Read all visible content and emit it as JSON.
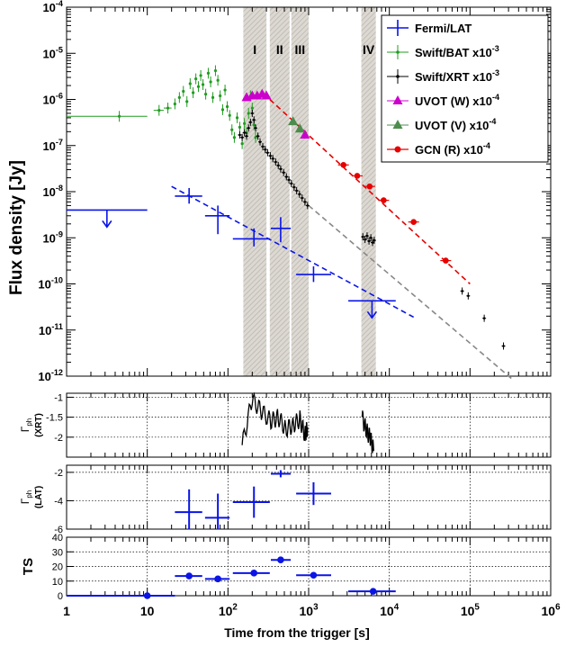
{
  "chart_data": [
    {
      "type": "scatter",
      "panel": "flux",
      "ylabel": "Flux density [Jy]",
      "xlim": [
        1,
        1000000
      ],
      "ylim": [
        1e-12,
        0.0001
      ],
      "log_x": true,
      "log_y": true,
      "grid": false,
      "legend_placement": "top-right",
      "yticks": [
        {
          "base": "10",
          "exp": "-4"
        },
        {
          "base": "10",
          "exp": "-5"
        },
        {
          "base": "10",
          "exp": "-6"
        },
        {
          "base": "10",
          "exp": "-7"
        },
        {
          "base": "10",
          "exp": "-8"
        },
        {
          "base": "10",
          "exp": "-9"
        },
        {
          "base": "10",
          "exp": "-10"
        },
        {
          "base": "10",
          "exp": "-11"
        },
        {
          "base": "10",
          "exp": "-12"
        }
      ],
      "bands": [
        {
          "label": "I",
          "x_from": 155,
          "x_to": 300
        },
        {
          "label": "II",
          "x_from": 330,
          "x_to": 580
        },
        {
          "label": "III",
          "x_from": 610,
          "x_to": 1000
        },
        {
          "label": "IV",
          "x_from": 4500,
          "x_to": 6800
        }
      ],
      "legend": [
        {
          "name": "Fermi/LAT",
          "color": "#0a14e6",
          "marker": "cross"
        },
        {
          "name": "Swift/BAT x10",
          "exp": "-3",
          "color": "#1f9c1f",
          "marker": "dot"
        },
        {
          "name": "Swift/XRT x10",
          "exp": "-3",
          "color": "#000000",
          "marker": "dot"
        },
        {
          "name": "UVOT (W) x10",
          "exp": "-4",
          "color": "#cc00cc",
          "marker": "triangle"
        },
        {
          "name": "UVOT (V) x10",
          "exp": "-4",
          "color": "#4d8c4d",
          "marker": "triangle"
        },
        {
          "name": "GCN (R) x10",
          "exp": "-4",
          "color": "#e60000",
          "marker": "circle"
        }
      ],
      "series": [
        {
          "name": "Fermi/LAT",
          "color": "#0a14e6",
          "points": [
            {
              "x": 3.16,
              "xlo": 1,
              "xhi": 10,
              "y": 4e-09,
              "upper_limit": true
            },
            {
              "x": 33,
              "xlo": 22,
              "xhi": 48,
              "y": 8e-09,
              "ylo": 5.5e-09,
              "yhi": 1.2e-08
            },
            {
              "x": 75,
              "xlo": 52,
              "xhi": 105,
              "y": 3e-09,
              "ylo": 1.2e-09,
              "yhi": 5e-09
            },
            {
              "x": 210,
              "xlo": 115,
              "xhi": 330,
              "y": 9.5e-10,
              "ylo": 6.5e-10,
              "yhi": 1.6e-09
            },
            {
              "x": 450,
              "xlo": 340,
              "xhi": 600,
              "y": 1.6e-09,
              "ylo": 8e-10,
              "yhi": 2.8e-09
            },
            {
              "x": 1150,
              "xlo": 700,
              "xhi": 1900,
              "y": 1.6e-10,
              "ylo": 1.1e-10,
              "yhi": 2.4e-10
            },
            {
              "x": 6300,
              "xlo": 3100,
              "xhi": 12000,
              "y": 4.3e-11,
              "upper_limit": true
            }
          ],
          "fit": {
            "x_from": 20,
            "x_to": 20000,
            "y_from": 1.3e-08,
            "y_to": 1.9e-11
          }
        },
        {
          "name": "Swift/BAT x10^-3",
          "color": "#1f9c1f",
          "points": [
            {
              "x": 4.5,
              "xlo": 1,
              "xhi": 10,
              "y": 4.3e-07
            },
            {
              "x": 14,
              "xlo": 12,
              "xhi": 16,
              "y": 5.8e-07
            },
            {
              "x": 18,
              "xlo": 16,
              "xhi": 20,
              "y": 6.5e-07
            },
            {
              "x": 22,
              "y": 8e-07
            },
            {
              "x": 25,
              "y": 1.1e-06
            },
            {
              "x": 28,
              "y": 1.5e-06
            },
            {
              "x": 31,
              "y": 9e-07
            },
            {
              "x": 34,
              "y": 2.2e-06
            },
            {
              "x": 37,
              "y": 1.4e-06
            },
            {
              "x": 40,
              "y": 2.8e-06
            },
            {
              "x": 43,
              "y": 1.9e-06
            },
            {
              "x": 46,
              "y": 3.3e-06
            },
            {
              "x": 49,
              "y": 2.1e-06
            },
            {
              "x": 53,
              "y": 1.3e-06
            },
            {
              "x": 57,
              "y": 3.7e-06
            },
            {
              "x": 61,
              "y": 2.4e-06
            },
            {
              "x": 65,
              "y": 1.1e-06
            },
            {
              "x": 70,
              "y": 4.2e-06
            },
            {
              "x": 75,
              "y": 2.6e-06
            },
            {
              "x": 80,
              "y": 1.2e-06
            },
            {
              "x": 86,
              "y": 6e-07
            },
            {
              "x": 92,
              "y": 1.6e-06
            },
            {
              "x": 98,
              "y": 7e-07
            },
            {
              "x": 105,
              "y": 4.5e-07
            },
            {
              "x": 112,
              "y": 2.2e-07
            },
            {
              "x": 120,
              "y": 1.5e-07
            },
            {
              "x": 130,
              "y": 4e-07
            },
            {
              "x": 140,
              "y": 2.5e-07
            },
            {
              "x": 150,
              "y": 1.1e-07
            },
            {
              "x": 160,
              "y": 3e-07
            },
            {
              "x": 170,
              "y": 1.9e-07
            },
            {
              "x": 180,
              "y": 5e-07
            },
            {
              "x": 190,
              "y": 1.2e-06
            },
            {
              "x": 200,
              "y": 6.5e-07
            },
            {
              "x": 210,
              "y": 2.8e-07
            },
            {
              "x": 220,
              "y": 1.5e-07
            }
          ]
        },
        {
          "name": "Swift/XRT x10^-3",
          "color": "#000000",
          "points": [
            {
              "x": 140,
              "y": 1.7e-07
            },
            {
              "x": 150,
              "y": 1.5e-07
            },
            {
              "x": 160,
              "y": 1.9e-07
            },
            {
              "x": 170,
              "y": 1.6e-07
            },
            {
              "x": 180,
              "y": 2.4e-07
            },
            {
              "x": 190,
              "y": 3.2e-07
            },
            {
              "x": 200,
              "y": 5e-07
            },
            {
              "x": 210,
              "y": 3.6e-07
            },
            {
              "x": 220,
              "y": 2.4e-07
            },
            {
              "x": 235,
              "y": 1.6e-07
            },
            {
              "x": 250,
              "y": 1.2e-07
            },
            {
              "x": 270,
              "y": 9.5e-08
            },
            {
              "x": 290,
              "y": 8.2e-08
            },
            {
              "x": 310,
              "y": 7e-08
            },
            {
              "x": 335,
              "y": 6e-08
            },
            {
              "x": 360,
              "y": 5.2e-08
            },
            {
              "x": 390,
              "y": 4.4e-08
            },
            {
              "x": 420,
              "y": 3.7e-08
            },
            {
              "x": 450,
              "y": 3.1e-08
            },
            {
              "x": 490,
              "y": 2.6e-08
            },
            {
              "x": 530,
              "y": 2.1e-08
            },
            {
              "x": 570,
              "y": 1.8e-08
            },
            {
              "x": 610,
              "y": 1.5e-08
            },
            {
              "x": 660,
              "y": 1.25e-08
            },
            {
              "x": 710,
              "y": 1.05e-08
            },
            {
              "x": 770,
              "y": 8.8e-09
            },
            {
              "x": 830,
              "y": 7.3e-09
            },
            {
              "x": 900,
              "y": 6e-09
            },
            {
              "x": 970,
              "y": 5e-09
            },
            {
              "x": 4700,
              "y": 1.05e-09
            },
            {
              "x": 5000,
              "y": 9.2e-10
            },
            {
              "x": 5300,
              "y": 1.1e-09
            },
            {
              "x": 5600,
              "y": 8.5e-10
            },
            {
              "x": 5900,
              "y": 1e-09
            },
            {
              "x": 6200,
              "y": 7.9e-10
            },
            {
              "x": 6500,
              "y": 8.8e-10
            },
            {
              "x": 80000,
              "y": 7e-11
            },
            {
              "x": 95000,
              "y": 5.5e-11
            },
            {
              "x": 150000,
              "y": 1.8e-11
            },
            {
              "x": 260000,
              "y": 4.5e-12
            }
          ],
          "fit": {
            "x_from": 1000,
            "x_to": 350000,
            "y_from": 5e-09,
            "y_to": 8e-13
          }
        },
        {
          "name": "UVOT (W) x10^-4",
          "color": "#cc00cc",
          "points": [
            {
              "x": 170,
              "y": 1.1e-06
            },
            {
              "x": 200,
              "y": 1.2e-06
            },
            {
              "x": 230,
              "y": 1.2e-06
            },
            {
              "x": 265,
              "y": 1.3e-06
            },
            {
              "x": 300,
              "y": 1.2e-06
            },
            {
              "x": 900,
              "y": 1.7e-07
            }
          ]
        },
        {
          "name": "UVOT (V) x10^-4",
          "color": "#4d8c4d",
          "points": [
            {
              "x": 640,
              "y": 3.3e-07
            },
            {
              "x": 780,
              "y": 2.3e-07
            }
          ]
        },
        {
          "name": "GCN (R) x10^-4",
          "color": "#e60000",
          "points": [
            {
              "x": 2700,
              "y": 3.8e-08
            },
            {
              "x": 4000,
              "y": 2.2e-08
            },
            {
              "x": 5700,
              "y": 1.3e-08
            },
            {
              "x": 8500,
              "y": 6.5e-09
            },
            {
              "x": 20000,
              "y": 2.2e-09
            },
            {
              "x": 50000,
              "y": 3.2e-10
            }
          ],
          "fit": {
            "x_from": 330,
            "x_to": 100000,
            "y_from": 1e-06,
            "y_to": 1e-10
          }
        }
      ]
    },
    {
      "type": "line",
      "panel": "xrt-index",
      "ylabel": "Γ",
      "ylabel_sub": "ph",
      "ylabel2": "(XRT)",
      "ylim": [
        -2.5,
        -0.9
      ],
      "yticks": [
        "-1",
        "-1.5",
        "-2"
      ],
      "grid": true,
      "color": "#000000",
      "segments": [
        {
          "x": [
            150,
            200,
            260,
            340,
            420,
            520,
            640,
            780,
            900,
            970
          ],
          "y": [
            -2.2,
            -1.05,
            -1.35,
            -1.6,
            -1.5,
            -1.8,
            -1.7,
            -1.55,
            -1.95,
            -1.75
          ]
        },
        {
          "x": [
            4600,
            5200,
            5800,
            6400
          ],
          "y": [
            -1.5,
            -1.85,
            -2.0,
            -2.35
          ]
        }
      ]
    },
    {
      "type": "scatter",
      "panel": "lat-index",
      "ylabel": "Γ",
      "ylabel_sub": "ph",
      "ylabel2": "(LAT)",
      "ylim": [
        -6,
        -1.5
      ],
      "yticks": [
        "-2",
        "-4",
        "-6"
      ],
      "grid": true,
      "color": "#0a14e6",
      "points": [
        {
          "x": 33,
          "xlo": 22,
          "xhi": 48,
          "y": -4.8,
          "ylo": -6,
          "yhi": -3.2
        },
        {
          "x": 75,
          "xlo": 52,
          "xhi": 105,
          "y": -5.2,
          "ylo": -6,
          "yhi": -3.5
        },
        {
          "x": 210,
          "xlo": 115,
          "xhi": 330,
          "y": -4.1,
          "ylo": -5.2,
          "yhi": -3.0
        },
        {
          "x": 450,
          "xlo": 340,
          "xhi": 600,
          "y": -2.1,
          "ylo": -2.35,
          "yhi": -1.85
        },
        {
          "x": 1150,
          "xlo": 700,
          "xhi": 1900,
          "y": -3.5,
          "ylo": -4.3,
          "yhi": -2.7
        }
      ]
    },
    {
      "type": "scatter",
      "panel": "ts",
      "ylabel": "TS",
      "xlabel": "Time from the trigger [s]",
      "ylim": [
        0,
        40
      ],
      "yticks": [
        "40",
        "30",
        "20",
        "10",
        "0"
      ],
      "xticks": [
        {
          "base": "1",
          "exp": ""
        },
        {
          "base": "10",
          "exp": ""
        },
        {
          "base": "10",
          "exp": "2"
        },
        {
          "base": "10",
          "exp": "3"
        },
        {
          "base": "10",
          "exp": "4"
        },
        {
          "base": "10",
          "exp": "5"
        },
        {
          "base": "10",
          "exp": "6"
        }
      ],
      "grid": true,
      "color": "#0a14e6",
      "points": [
        {
          "x": 10,
          "xlo": 1,
          "xhi": 22,
          "y": 0
        },
        {
          "x": 33,
          "xlo": 22,
          "xhi": 48,
          "y": 13.5
        },
        {
          "x": 75,
          "xlo": 52,
          "xhi": 105,
          "y": 11.5
        },
        {
          "x": 210,
          "xlo": 115,
          "xhi": 330,
          "y": 15.5
        },
        {
          "x": 450,
          "xlo": 340,
          "xhi": 600,
          "y": 24.5
        },
        {
          "x": 1150,
          "xlo": 700,
          "xhi": 1900,
          "y": 14
        },
        {
          "x": 6300,
          "xlo": 3100,
          "xhi": 12000,
          "y": 3
        }
      ]
    }
  ]
}
